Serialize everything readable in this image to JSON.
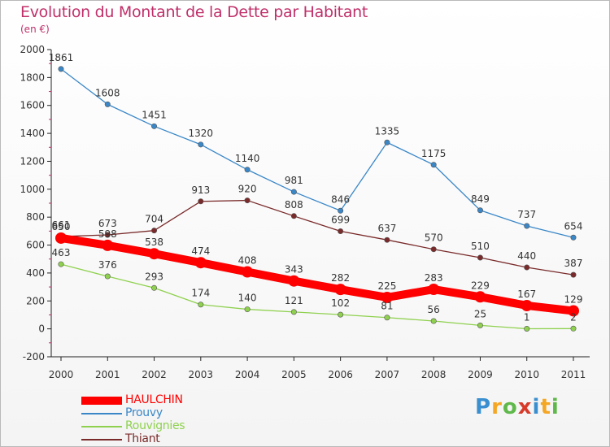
{
  "title": "Evolution du Montant de la Dette par Habitant",
  "subtitle": "(en €)",
  "logo": {
    "letters": [
      "P",
      "r",
      "o",
      "x",
      "i",
      "t",
      "i"
    ],
    "colors": [
      "#3a8fd0",
      "#f5a623",
      "#5fb84a",
      "#d83a2a",
      "#3a8fd0",
      "#f5a623",
      "#5fb84a"
    ]
  },
  "chart_data": {
    "type": "line",
    "x": [
      "2000",
      "2001",
      "2002",
      "2003",
      "2004",
      "2005",
      "2006",
      "2007",
      "2008",
      "2009",
      "2010",
      "2011"
    ],
    "ylim": [
      -200,
      2000
    ],
    "yticks": [
      "-200",
      "0",
      "200",
      "400",
      "600",
      "800",
      "1000",
      "1200",
      "1400",
      "1600",
      "1800",
      "2000"
    ],
    "grid": false,
    "legend_position": "bottom-left",
    "series": [
      {
        "name": "HAULCHIN",
        "color": "#ff0000",
        "values": [
          650,
          598,
          538,
          474,
          408,
          343,
          282,
          225,
          283,
          229,
          167,
          129
        ],
        "labels": [
          "650",
          "598",
          "538",
          "474",
          "408",
          "343",
          "282",
          "225",
          "283",
          "229",
          "167",
          "129"
        ]
      },
      {
        "name": "Prouvy",
        "color": "#3a87c8",
        "values": [
          1861,
          1608,
          1451,
          1320,
          1140,
          981,
          846,
          1335,
          1175,
          849,
          737,
          654
        ],
        "labels": [
          "1861",
          "1608",
          "1451",
          "1320",
          "1140",
          "981",
          "846",
          "1335",
          "1175",
          "849",
          "737",
          "654"
        ]
      },
      {
        "name": "Rouvignies",
        "color": "#8fd14f",
        "values": [
          463,
          376,
          293,
          174,
          140,
          121,
          102,
          81,
          56,
          25,
          1,
          2
        ],
        "labels": [
          "463",
          "376",
          "293",
          "174",
          "140",
          "121",
          "102",
          "81",
          "56",
          "25",
          "1",
          "2"
        ]
      },
      {
        "name": "Thiant",
        "color": "#7a2a2a",
        "values": [
          661,
          673,
          704,
          913,
          920,
          808,
          699,
          637,
          570,
          510,
          440,
          387
        ],
        "labels": [
          "661",
          "673",
          "704",
          "913",
          "920",
          "808",
          "699",
          "637",
          "570",
          "510",
          "440",
          "387"
        ]
      }
    ]
  }
}
